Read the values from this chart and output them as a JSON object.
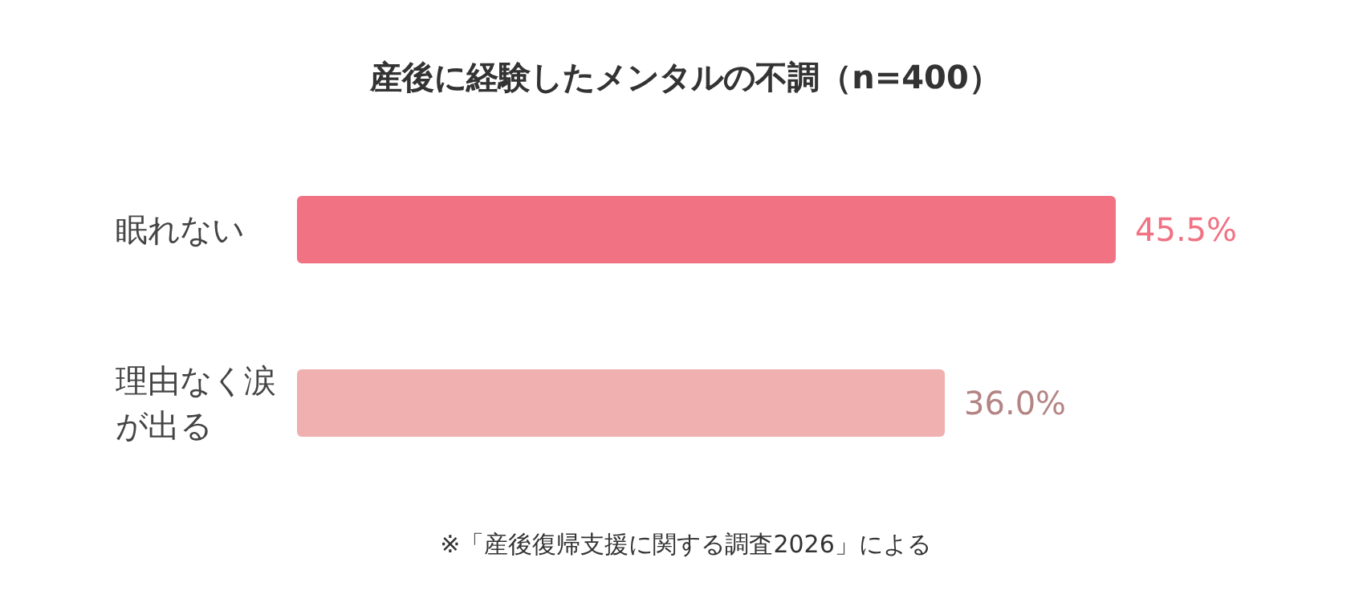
{
  "chart_data": {
    "type": "bar",
    "orientation": "horizontal",
    "title": "産後に経験したメンタルの不調（n=400）",
    "categories": [
      "眠れない",
      "理由なく涙が出る"
    ],
    "values": [
      45.5,
      36.0
    ],
    "value_labels": [
      "45.5%",
      "36.0%"
    ],
    "colors": [
      "#f07283",
      "#f0b0b0"
    ],
    "annotations": [
      "※「産後復帰支援に関する調査2026」による"
    ]
  }
}
